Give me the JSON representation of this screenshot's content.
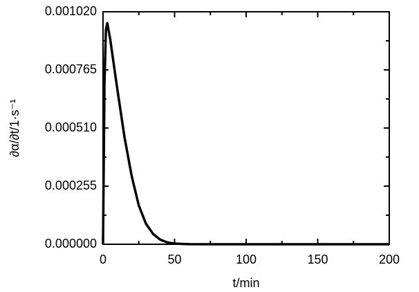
{
  "chart_data": {
    "type": "line",
    "xlabel": "t/min",
    "ylabel": "∂α/∂t/1·s⁻¹",
    "x": [
      0,
      1,
      2,
      3,
      5,
      10,
      15,
      20,
      25,
      30,
      35,
      40,
      45,
      50,
      60,
      80,
      100,
      150,
      200
    ],
    "series": [
      {
        "color": "#000000",
        "values": [
          0,
          0.0007,
          0.00094,
          0.00097,
          0.0009,
          0.00068,
          0.00047,
          0.0003,
          0.00017,
          9e-05,
          4.5e-05,
          2e-05,
          8e-06,
          3e-06,
          5e-07,
          0,
          0,
          0,
          0
        ]
      }
    ],
    "xlim": [
      0,
      200
    ],
    "ylim": [
      0,
      0.00102
    ],
    "xticks": [
      0,
      50,
      100,
      150,
      200
    ],
    "xminorticks": [
      25,
      75,
      125,
      175
    ],
    "yticks": [
      {
        "value": 0,
        "label": "0.000000"
      },
      {
        "value": 0.000255,
        "label": "0.000255"
      },
      {
        "value": 0.00051,
        "label": "0.000510"
      },
      {
        "value": 0.000765,
        "label": "0.000765"
      },
      {
        "value": 0.00102,
        "label": "0.001020"
      }
    ],
    "yminorticks": [
      0.0001275,
      0.0003825,
      0.0006375,
      0.0008925
    ]
  }
}
